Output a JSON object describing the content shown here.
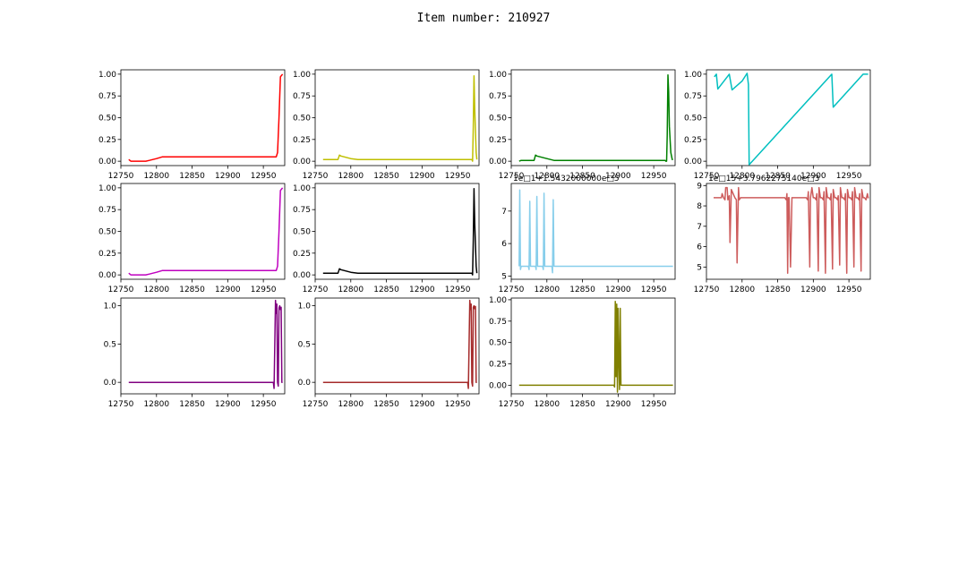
{
  "figure": {
    "title": "Item number: 210927"
  },
  "chart_data": [
    {
      "type": "line",
      "color": "#ff0000",
      "xlim": [
        12750,
        12980
      ],
      "ylim": [
        -0.05,
        1.05
      ],
      "xticks": [
        "12750",
        "12800",
        "12850",
        "12900",
        "12950"
      ],
      "yticks": [
        "0.00",
        "0.25",
        "0.50",
        "0.75",
        "1.00"
      ],
      "x": [
        12761,
        12764,
        12768,
        12775,
        12785,
        12790,
        12800,
        12808,
        12820,
        12850,
        12900,
        12950,
        12968,
        12970,
        12972,
        12974,
        12977
      ],
      "y": [
        0.02,
        0.0,
        0.0,
        0.0,
        0.0,
        0.01,
        0.03,
        0.05,
        0.05,
        0.05,
        0.05,
        0.05,
        0.05,
        0.1,
        0.5,
        0.97,
        1.0
      ]
    },
    {
      "type": "line",
      "color": "#bfbf00",
      "xlim": [
        12750,
        12980
      ],
      "ylim": [
        -0.05,
        1.05
      ],
      "xticks": [
        "12750",
        "12800",
        "12850",
        "12900",
        "12950"
      ],
      "yticks": [
        "0.00",
        "0.25",
        "0.50",
        "0.75",
        "1.00"
      ],
      "x": [
        12761,
        12765,
        12782,
        12784,
        12786,
        12800,
        12810,
        12850,
        12900,
        12950,
        12968,
        12970,
        12971,
        12972,
        12973,
        12974,
        12976,
        12977
      ],
      "y": [
        0.02,
        0.02,
        0.02,
        0.07,
        0.06,
        0.03,
        0.02,
        0.02,
        0.02,
        0.02,
        0.02,
        0.02,
        0.0,
        0.4,
        0.98,
        0.6,
        0.1,
        0.02
      ]
    },
    {
      "type": "line",
      "color": "#008000",
      "xlim": [
        12750,
        12980
      ],
      "ylim": [
        -0.05,
        1.05
      ],
      "xticks": [
        "12750",
        "12800",
        "12850",
        "12900",
        "12950"
      ],
      "yticks": [
        "0.00",
        "0.25",
        "0.50",
        "0.75",
        "1.00"
      ],
      "x": [
        12761,
        12764,
        12782,
        12784,
        12786,
        12800,
        12810,
        12850,
        12900,
        12950,
        12965,
        12966,
        12967,
        12968,
        12969,
        12970,
        12971,
        12972,
        12974,
        12976,
        12977
      ],
      "y": [
        0.0,
        0.01,
        0.01,
        0.07,
        0.06,
        0.03,
        0.01,
        0.01,
        0.01,
        0.01,
        0.01,
        0.01,
        0.0,
        0.0,
        0.3,
        0.99,
        0.8,
        0.4,
        0.1,
        0.02,
        0.02
      ]
    },
    {
      "type": "line",
      "color": "#00bfbf",
      "xlim": [
        12750,
        12980
      ],
      "ylim": [
        -0.05,
        1.05
      ],
      "xticks": [
        "12750",
        "12800",
        "12850",
        "12900",
        "12950"
      ],
      "yticks": [
        "0.00",
        "0.25",
        "0.50",
        "0.75",
        "1.00"
      ],
      "x": [
        12761,
        12764,
        12766,
        12782,
        12786,
        12800,
        12807,
        12809,
        12810,
        12926,
        12928,
        12970,
        12977
      ],
      "y": [
        0.97,
        1.0,
        0.83,
        1.0,
        0.82,
        0.92,
        1.01,
        0.88,
        -0.04,
        1.0,
        0.62,
        1.0,
        1.0
      ]
    },
    {
      "type": "line",
      "color": "#bf00bf",
      "xlim": [
        12750,
        12980
      ],
      "ylim": [
        -0.05,
        1.05
      ],
      "xticks": [
        "12750",
        "12800",
        "12850",
        "12900",
        "12950"
      ],
      "yticks": [
        "0.00",
        "0.25",
        "0.50",
        "0.75",
        "1.00"
      ],
      "x": [
        12761,
        12764,
        12768,
        12775,
        12785,
        12790,
        12800,
        12808,
        12820,
        12850,
        12900,
        12950,
        12968,
        12970,
        12972,
        12974,
        12977
      ],
      "y": [
        0.02,
        0.0,
        0.0,
        0.0,
        0.0,
        0.01,
        0.03,
        0.05,
        0.05,
        0.05,
        0.05,
        0.05,
        0.05,
        0.1,
        0.5,
        0.97,
        1.0
      ]
    },
    {
      "type": "line",
      "color": "#000000",
      "xlim": [
        12750,
        12980
      ],
      "ylim": [
        -0.05,
        1.05
      ],
      "xticks": [
        "12750",
        "12800",
        "12850",
        "12900",
        "12950"
      ],
      "yticks": [
        "0.00",
        "0.25",
        "0.50",
        "0.75",
        "1.00"
      ],
      "x": [
        12761,
        12765,
        12782,
        12784,
        12786,
        12800,
        12810,
        12850,
        12900,
        12950,
        12968,
        12970,
        12971,
        12972,
        12973,
        12974,
        12976,
        12977
      ],
      "y": [
        0.02,
        0.02,
        0.02,
        0.07,
        0.06,
        0.03,
        0.02,
        0.02,
        0.02,
        0.02,
        0.02,
        0.02,
        0.0,
        0.4,
        0.99,
        0.6,
        0.1,
        0.02
      ]
    },
    {
      "type": "line",
      "color": "#87ceeb",
      "offset": "1e□1+1.5432000000e□5",
      "xlim": [
        12750,
        12980
      ],
      "ylim": [
        4.9,
        7.85
      ],
      "xticks": [
        "12750",
        "12800",
        "12850",
        "12900",
        "12950"
      ],
      "yticks": [
        "5",
        "6",
        "7"
      ],
      "x": [
        12761,
        12762,
        12763,
        12764,
        12766,
        12774,
        12775,
        12776,
        12777,
        12784,
        12785,
        12786,
        12787,
        12794,
        12795,
        12796,
        12797,
        12807,
        12808,
        12809,
        12810,
        12820,
        12850,
        12900,
        12950,
        12977
      ],
      "y": [
        5.3,
        7.65,
        5.2,
        5.3,
        5.3,
        5.3,
        5.2,
        7.3,
        5.3,
        5.3,
        5.2,
        7.45,
        5.3,
        5.3,
        5.2,
        7.55,
        5.3,
        5.3,
        5.1,
        7.35,
        5.3,
        5.3,
        5.3,
        5.3,
        5.3,
        5.3
      ]
    },
    {
      "type": "line",
      "color": "#cd5c5c",
      "offset": "1e□15+3.7962275140e□3",
      "xlim": [
        12750,
        12980
      ],
      "ylim": [
        4.4,
        9.1
      ],
      "xticks": [
        "12750",
        "12800",
        "12850",
        "12900",
        "12950"
      ],
      "yticks": [
        "5",
        "6",
        "7",
        "8",
        "9"
      ],
      "x": [
        12760,
        12770,
        12771,
        12772,
        12774,
        12776,
        12777,
        12779,
        12780,
        12782,
        12783,
        12785,
        12790,
        12792,
        12793,
        12795,
        12796,
        12798,
        12800,
        12830,
        12860,
        12862,
        12863,
        12864,
        12865,
        12866,
        12868,
        12870,
        12890,
        12892,
        12893,
        12895,
        12896,
        12898,
        12900,
        12902,
        12904,
        12905,
        12907,
        12908,
        12910,
        12912,
        12914,
        12915,
        12917,
        12918,
        12920,
        12922,
        12924,
        12925,
        12927,
        12928,
        12930,
        12932,
        12934,
        12935,
        12937,
        12938,
        12940,
        12942,
        12944,
        12945,
        12947,
        12948,
        12950,
        12952,
        12954,
        12955,
        12957,
        12958,
        12960,
        12962,
        12964,
        12965,
        12967,
        12968,
        12970,
        12972,
        12974,
        12976,
        12977,
        12978
      ],
      "y": [
        8.4,
        8.4,
        8.4,
        8.6,
        8.4,
        8.3,
        8.9,
        8.9,
        8.3,
        8.5,
        6.2,
        8.8,
        8.4,
        8.3,
        5.2,
        8.9,
        8.3,
        8.4,
        8.4,
        8.4,
        8.4,
        8.3,
        8.6,
        4.7,
        8.4,
        8.4,
        5.0,
        8.4,
        8.4,
        8.3,
        8.7,
        5.0,
        8.4,
        8.9,
        8.4,
        8.4,
        8.3,
        8.6,
        4.8,
        8.9,
        8.4,
        8.4,
        8.3,
        8.7,
        4.7,
        8.9,
        8.4,
        8.4,
        8.3,
        8.6,
        4.9,
        8.8,
        8.4,
        8.4,
        8.3,
        8.5,
        5.1,
        8.9,
        8.4,
        8.4,
        8.3,
        8.6,
        4.7,
        8.8,
        8.4,
        8.4,
        8.3,
        8.7,
        5.0,
        8.9,
        8.4,
        8.4,
        8.3,
        8.6,
        4.8,
        8.8,
        8.4,
        8.4,
        8.3,
        8.6,
        8.4,
        8.4
      ]
    },
    {
      "type": "line",
      "color": "#800080",
      "xlim": [
        12750,
        12980
      ],
      "ylim": [
        -0.15,
        1.1
      ],
      "xticks": [
        "12750",
        "12800",
        "12850",
        "12900",
        "12950"
      ],
      "yticks": [
        "0.0",
        "0.5",
        "1.0"
      ],
      "x": [
        12761,
        12800,
        12850,
        12900,
        12950,
        12964,
        12965,
        12966,
        12967,
        12968,
        12969,
        12970,
        12971,
        12972,
        12973,
        12974,
        12975,
        12976,
        12977
      ],
      "y": [
        0.0,
        0.0,
        0.0,
        0.0,
        0.0,
        0.0,
        -0.08,
        0.5,
        1.07,
        0.9,
        1.02,
        0.0,
        -0.05,
        0.97,
        1.0,
        0.95,
        0.98,
        0.0,
        0.0
      ]
    },
    {
      "type": "line",
      "color": "#a52a2a",
      "xlim": [
        12750,
        12980
      ],
      "ylim": [
        -0.15,
        1.1
      ],
      "xticks": [
        "12750",
        "12800",
        "12850",
        "12900",
        "12950"
      ],
      "yticks": [
        "0.0",
        "0.5",
        "1.0"
      ],
      "x": [
        12761,
        12800,
        12850,
        12900,
        12950,
        12964,
        12965,
        12966,
        12967,
        12968,
        12969,
        12970,
        12971,
        12972,
        12973,
        12974,
        12975,
        12976,
        12977
      ],
      "y": [
        0.0,
        0.0,
        0.0,
        0.0,
        0.0,
        0.0,
        -0.08,
        0.5,
        1.07,
        0.95,
        1.02,
        0.0,
        -0.05,
        0.98,
        1.0,
        0.96,
        0.99,
        0.0,
        0.0
      ]
    },
    {
      "type": "line",
      "color": "#808000",
      "xlim": [
        12750,
        12980
      ],
      "ylim": [
        -0.1,
        1.02
      ],
      "xticks": [
        "12750",
        "12800",
        "12850",
        "12900",
        "12950"
      ],
      "yticks": [
        "0.00",
        "0.25",
        "0.50",
        "0.75",
        "1.00"
      ],
      "x": [
        12761,
        12850,
        12893,
        12894,
        12895,
        12896,
        12897,
        12898,
        12899,
        12900,
        12901,
        12902,
        12903,
        12904,
        12905,
        12950,
        12977
      ],
      "y": [
        0.0,
        0.0,
        0.0,
        0.0,
        -0.02,
        0.98,
        0.1,
        0.95,
        -0.08,
        0.9,
        0.3,
        -0.05,
        0.9,
        0.0,
        0.0,
        0.0,
        0.0
      ]
    }
  ]
}
